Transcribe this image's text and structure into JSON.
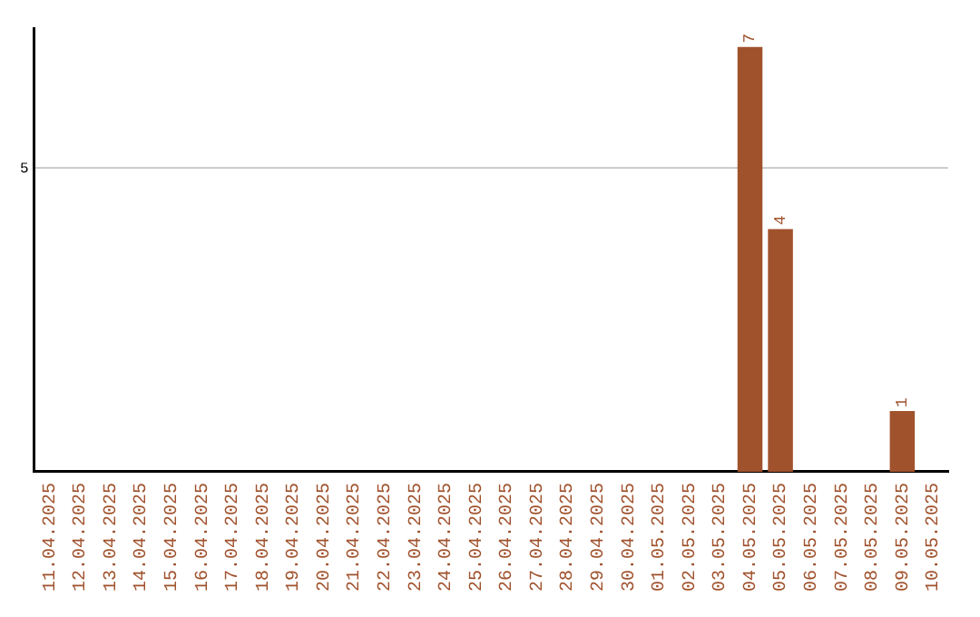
{
  "chart_data": {
    "type": "bar",
    "categories": [
      "11.04.2025",
      "12.04.2025",
      "13.04.2025",
      "14.04.2025",
      "15.04.2025",
      "16.04.2025",
      "17.04.2025",
      "18.04.2025",
      "19.04.2025",
      "20.04.2025",
      "21.04.2025",
      "22.04.2025",
      "23.04.2025",
      "24.04.2025",
      "25.04.2025",
      "26.04.2025",
      "27.04.2025",
      "28.04.2025",
      "29.04.2025",
      "30.04.2025",
      "01.05.2025",
      "02.05.2025",
      "03.05.2025",
      "04.05.2025",
      "05.05.2025",
      "06.05.2025",
      "07.05.2025",
      "08.05.2025",
      "09.05.2025",
      "10.05.2025"
    ],
    "values": [
      null,
      null,
      null,
      null,
      null,
      null,
      null,
      null,
      null,
      null,
      null,
      null,
      null,
      null,
      null,
      null,
      null,
      null,
      null,
      null,
      null,
      null,
      null,
      7,
      4,
      null,
      null,
      null,
      1,
      null
    ],
    "color": "#a0522d",
    "ylim": [
      0,
      7.3
    ],
    "yticks": [
      5
    ],
    "grid": "y",
    "data_labels": true,
    "legend": false
  }
}
